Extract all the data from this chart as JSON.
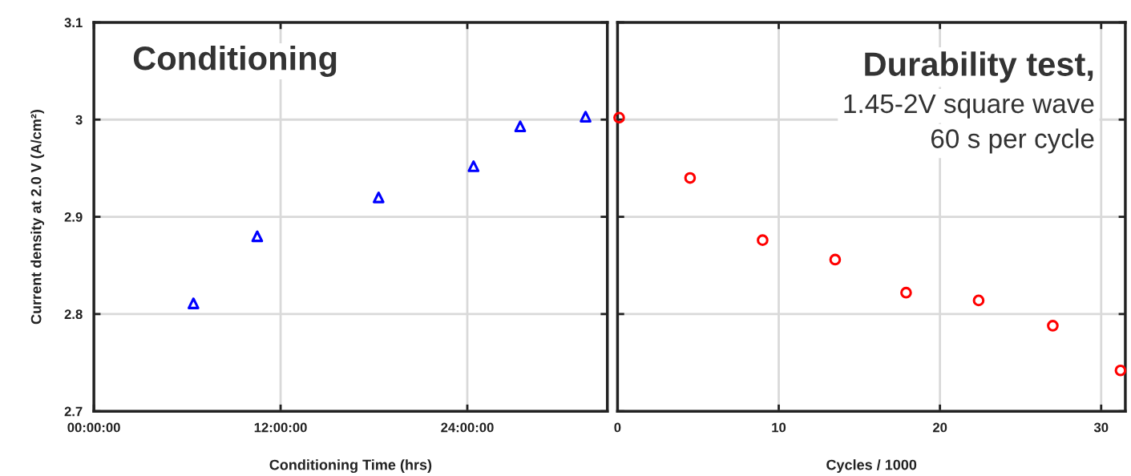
{
  "chart_data": [
    {
      "type": "scatter",
      "xlabel": "Conditioning Time (hrs)",
      "ylabel": "Current density at 2.0 V (A/cm²)",
      "annotations": [
        "Conditioning"
      ],
      "series": [
        {
          "color": "#0000ff",
          "marker": "triangle",
          "x": [
            6.4,
            10.5,
            18.3,
            24.4,
            27.4,
            31.6
          ],
          "values": [
            2.811,
            2.88,
            2.92,
            2.952,
            2.993,
            3.003
          ]
        }
      ],
      "xlim": [
        0,
        33
      ],
      "xticks": [
        {
          "value": 0,
          "label": "00:00:00"
        },
        {
          "value": 12,
          "label": "12:00:00"
        },
        {
          "value": 24,
          "label": "24:00:00"
        }
      ],
      "ylim": [
        2.7,
        3.1
      ],
      "yticks": [
        2.7,
        2.8,
        2.9,
        3,
        3.1
      ],
      "grid": true
    },
    {
      "type": "scatter",
      "xlabel": "Cycles / 1000",
      "annotations": [
        "Durability test,",
        "1.45-2V square wave",
        "60 s per cycle"
      ],
      "series": [
        {
          "color": "#ff0000",
          "marker": "circle",
          "x": [
            0.1,
            4.5,
            9.0,
            13.5,
            17.9,
            22.4,
            27.0,
            31.2
          ],
          "values": [
            3.002,
            2.94,
            2.876,
            2.856,
            2.822,
            2.814,
            2.788,
            2.742
          ]
        }
      ],
      "xlim": [
        0,
        31.5
      ],
      "xticks": [
        0,
        10,
        20,
        30
      ],
      "ylim": [
        2.7,
        3.1
      ],
      "yticks": [
        2.7,
        2.8,
        2.9,
        3,
        3.1
      ],
      "tick_labels": "x",
      "grid": true
    }
  ]
}
